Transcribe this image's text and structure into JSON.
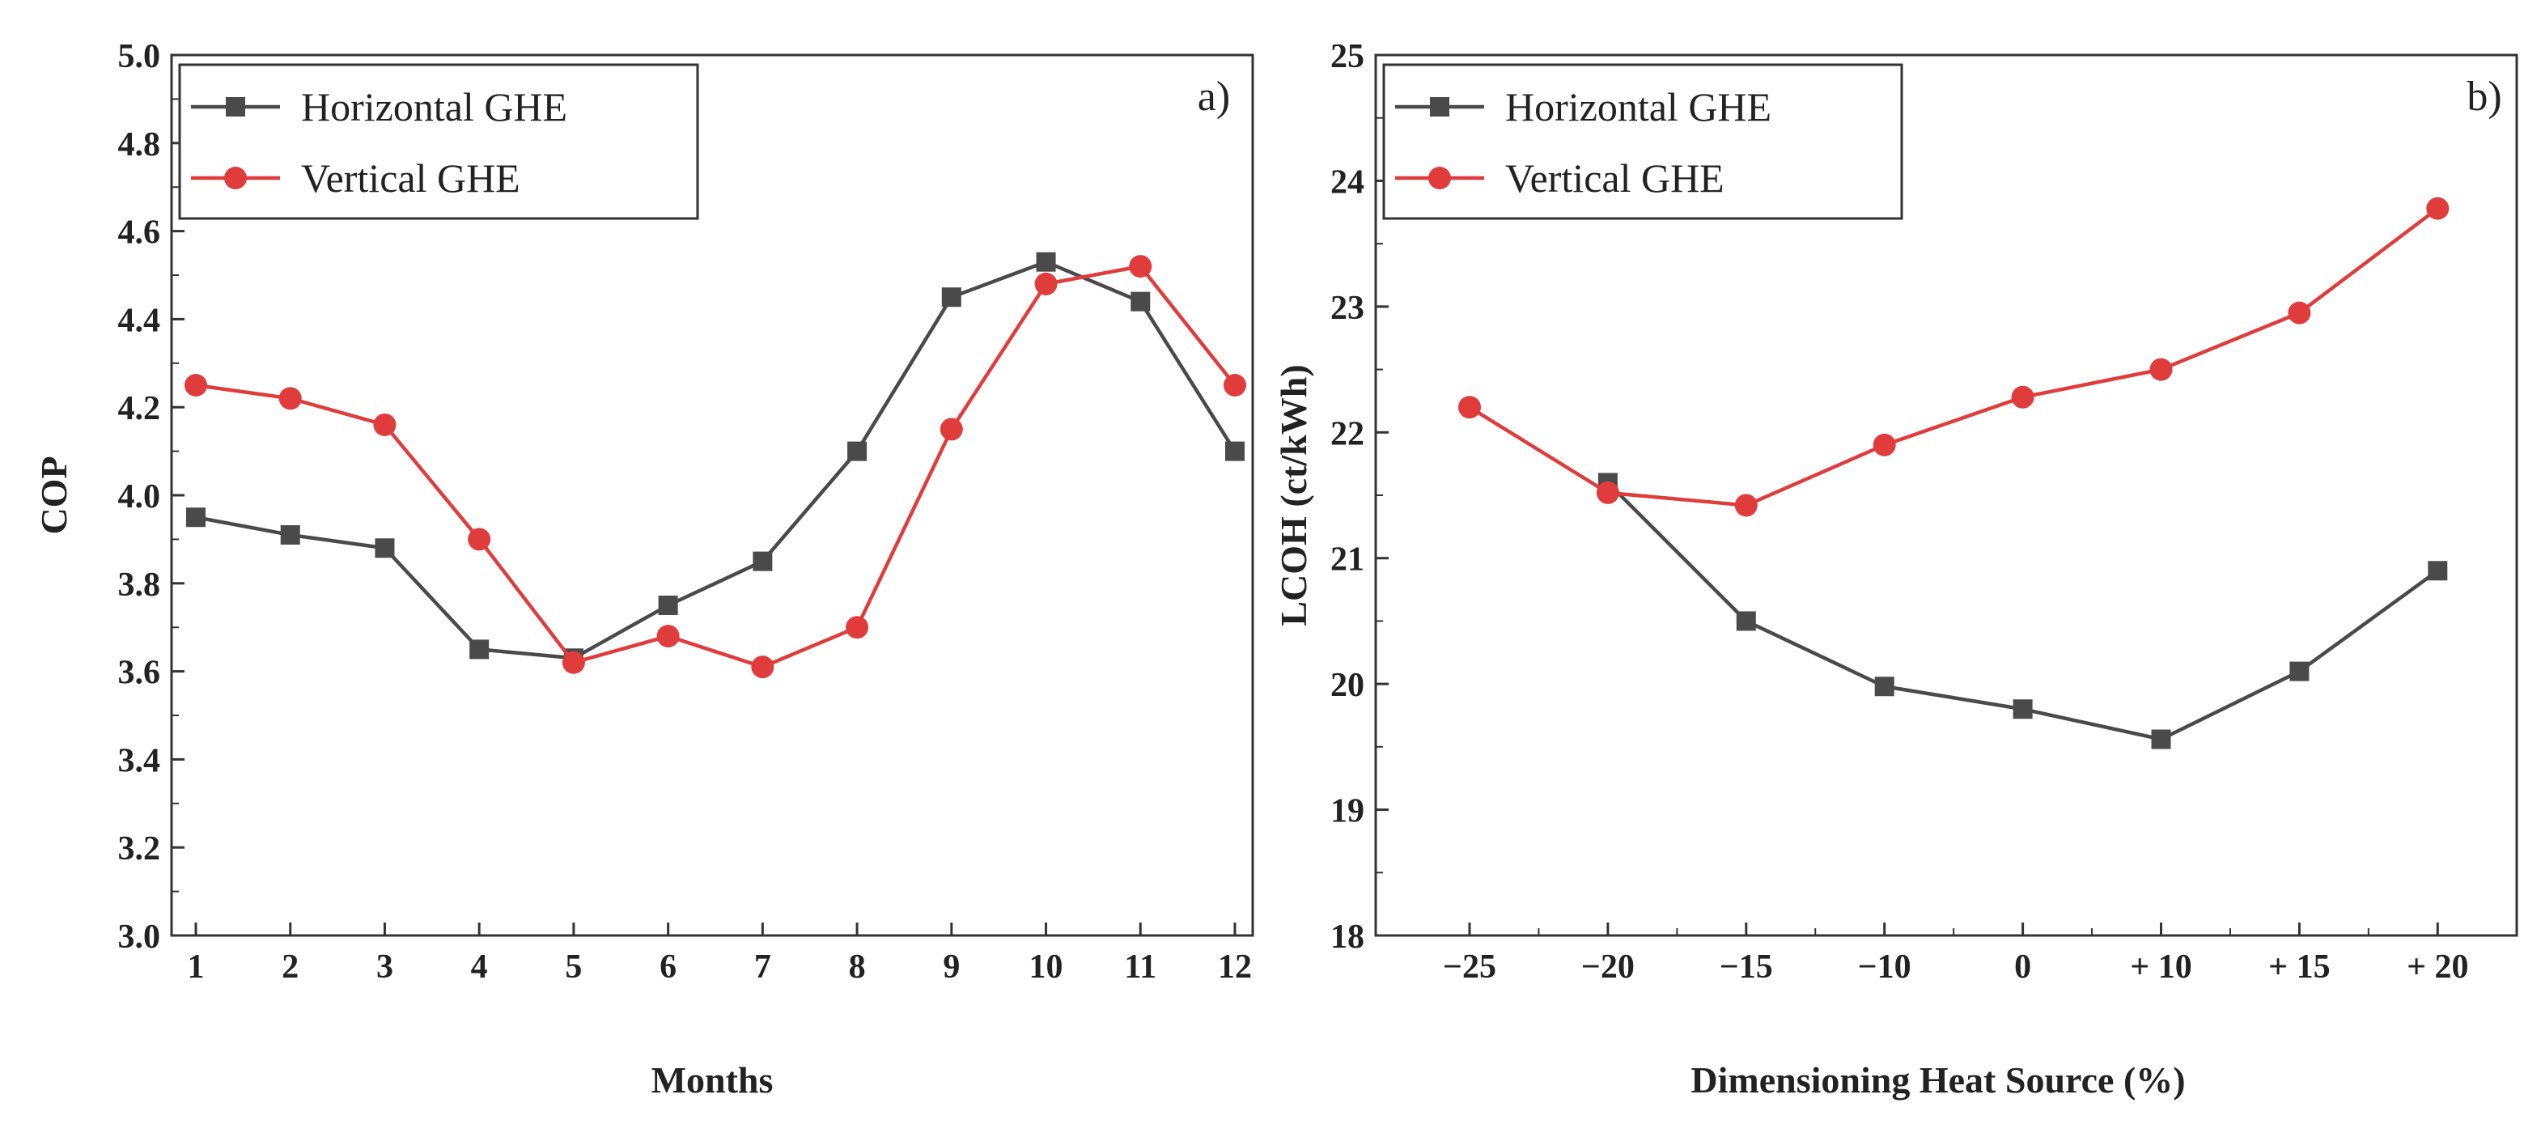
{
  "colors": {
    "horizontal": "#4a4a4a",
    "vertical": "#e03c3c",
    "axis": "#333333"
  },
  "chart_data": [
    {
      "type": "line",
      "panel_label": "a)",
      "xlabel": "Months",
      "ylabel": "COP",
      "x": [
        1,
        2,
        3,
        4,
        5,
        6,
        7,
        8,
        9,
        10,
        11,
        12
      ],
      "xtick_labels": [
        "1",
        "2",
        "3",
        "4",
        "5",
        "6",
        "7",
        "8",
        "9",
        "10",
        "11",
        "12"
      ],
      "ylim": [
        3.0,
        5.0
      ],
      "yticks": [
        "3.0",
        "3.2",
        "3.4",
        "3.6",
        "3.8",
        "4.0",
        "4.2",
        "4.4",
        "4.6",
        "4.8",
        "5.0"
      ],
      "legend_position": "top-left",
      "series": [
        {
          "name": "Horizontal GHE",
          "marker": "square",
          "values": [
            3.95,
            3.91,
            3.88,
            3.65,
            3.63,
            3.75,
            3.85,
            4.1,
            4.45,
            4.53,
            4.44,
            4.1
          ]
        },
        {
          "name": "Vertical GHE",
          "marker": "circle",
          "values": [
            4.25,
            4.22,
            4.16,
            3.9,
            3.62,
            3.68,
            3.61,
            3.7,
            4.15,
            4.48,
            4.52,
            4.25
          ]
        }
      ]
    },
    {
      "type": "line",
      "panel_label": "b)",
      "xlabel": "Dimensioning Heat Source (%)",
      "ylabel": "LCOH (ct/kWh)",
      "x": [
        -25,
        -20,
        -15,
        -10,
        0,
        10,
        15,
        20
      ],
      "xtick_labels": [
        "−25",
        "−20",
        "−15",
        "−10",
        "0",
        "+ 10",
        "+ 15",
        "+ 20"
      ],
      "ylim": [
        18,
        25
      ],
      "yticks": [
        "18",
        "19",
        "20",
        "21",
        "22",
        "23",
        "24",
        "25"
      ],
      "legend_position": "top-left",
      "series": [
        {
          "name": "Horizontal GHE",
          "marker": "square",
          "values": [
            null,
            21.6,
            20.5,
            19.98,
            19.8,
            19.56,
            20.1,
            20.9
          ]
        },
        {
          "name": "Vertical GHE",
          "marker": "circle",
          "values": [
            22.2,
            21.52,
            21.42,
            21.9,
            22.28,
            22.5,
            22.95,
            23.78
          ]
        }
      ]
    }
  ]
}
